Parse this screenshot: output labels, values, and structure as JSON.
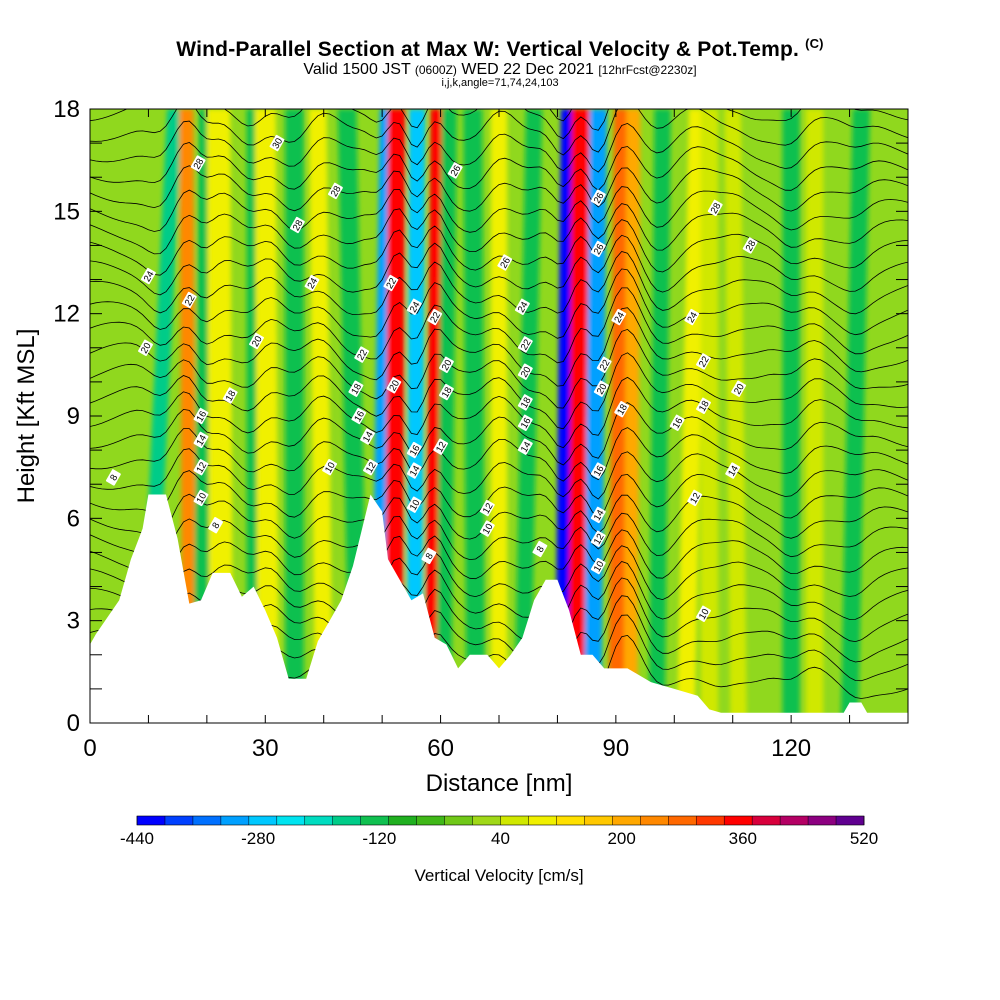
{
  "chart_data": {
    "type": "heatmap",
    "title": "Wind-Parallel Section at Max W: Vertical Velocity & Pot.Temp.",
    "title_mark": "(C)",
    "subtitle_main": "Valid 1500 JST",
    "subtitle_utc": "(0600Z)",
    "subtitle_date": "WED 22 Dec 2021",
    "subtitle_fcst": "[12hrFcst@2230z]",
    "subtitle2": "i,j,k,angle=71,74,24,103",
    "xlabel": "Distance [nm]",
    "ylabel": "Height [Kft MSL]",
    "xlim": [
      0,
      140
    ],
    "ylim": [
      0,
      18
    ],
    "xticks": [
      0,
      30,
      60,
      90,
      120
    ],
    "yticks": [
      0,
      3,
      6,
      9,
      12,
      15,
      18
    ],
    "colorbar": {
      "label": "Vertical Velocity [cm/s]",
      "min": -440,
      "max": 520,
      "step": 40,
      "tick_labels": [
        -440,
        -280,
        -120,
        40,
        200,
        360,
        520
      ],
      "colors": [
        "#0000ff",
        "#0040ff",
        "#0070ff",
        "#00a0ff",
        "#00c8ff",
        "#00e4f0",
        "#00dcc0",
        "#00cc88",
        "#10c050",
        "#20b020",
        "#40b818",
        "#70c818",
        "#a0d818",
        "#d0e800",
        "#f0f000",
        "#ffe000",
        "#ffc800",
        "#ffa800",
        "#ff8800",
        "#ff6800",
        "#ff3800",
        "#ff0000",
        "#d8003c",
        "#b40064",
        "#8c0080",
        "#600090"
      ]
    },
    "background_color": "#90d81e",
    "terrain": [
      [
        0,
        2.3
      ],
      [
        1,
        2.6
      ],
      [
        3,
        3.1
      ],
      [
        5,
        3.6
      ],
      [
        7,
        4.8
      ],
      [
        9,
        5.7
      ],
      [
        10,
        6.7
      ],
      [
        13,
        6.7
      ],
      [
        15,
        5.4
      ],
      [
        17,
        3.5
      ],
      [
        19,
        3.6
      ],
      [
        21,
        4.4
      ],
      [
        24,
        4.4
      ],
      [
        26,
        3.7
      ],
      [
        28,
        4.0
      ],
      [
        30,
        3.3
      ],
      [
        32,
        2.5
      ],
      [
        34,
        1.3
      ],
      [
        37,
        1.3
      ],
      [
        39,
        2.4
      ],
      [
        41,
        3.0
      ],
      [
        43,
        3.6
      ],
      [
        45,
        4.6
      ],
      [
        48,
        6.7
      ],
      [
        50,
        6.2
      ],
      [
        51,
        4.8
      ],
      [
        53,
        4.2
      ],
      [
        55,
        3.6
      ],
      [
        57,
        3.8
      ],
      [
        59,
        2.5
      ],
      [
        61,
        2.3
      ],
      [
        63,
        1.6
      ],
      [
        65,
        2.0
      ],
      [
        68,
        2.0
      ],
      [
        70,
        1.6
      ],
      [
        72,
        2.0
      ],
      [
        74,
        2.5
      ],
      [
        76,
        3.6
      ],
      [
        78,
        4.2
      ],
      [
        80,
        4.2
      ],
      [
        82,
        3.3
      ],
      [
        84,
        2.0
      ],
      [
        86,
        2.0
      ],
      [
        88,
        1.6
      ],
      [
        92,
        1.6
      ],
      [
        96,
        1.2
      ],
      [
        100,
        1.0
      ],
      [
        104,
        0.8
      ],
      [
        106,
        0.4
      ],
      [
        108,
        0.3
      ],
      [
        124,
        0.3
      ],
      [
        129,
        0.3
      ],
      [
        130,
        0.6
      ],
      [
        132,
        0.6
      ],
      [
        133,
        0.3
      ],
      [
        140,
        0.3
      ]
    ],
    "velocity_bands": [
      {
        "x": 9.5,
        "x_top": 14.5,
        "w": 1.3,
        "value": -160
      },
      {
        "x": 17,
        "x_top": 16.5,
        "w": 1.2,
        "value": 280
      },
      {
        "x": 19,
        "x_top": 20,
        "w": 1.4,
        "value": -120
      },
      {
        "x": 22.5,
        "x_top": 22,
        "w": 2.0,
        "value": 120
      },
      {
        "x": 28,
        "x_top": 28,
        "w": 1.2,
        "value": -120
      },
      {
        "x": 30.5,
        "x_top": 30,
        "w": 1.8,
        "value": 120
      },
      {
        "x": 35,
        "x_top": 35,
        "w": 1.6,
        "value": -120
      },
      {
        "x": 40,
        "x_top": 39,
        "w": 1.5,
        "value": 120
      },
      {
        "x": 46,
        "x_top": 44,
        "w": 1.6,
        "value": -120
      },
      {
        "x": 49.5,
        "x_top": 51,
        "w": 1.4,
        "value": -320
      },
      {
        "x": 52,
        "x_top": 52.5,
        "w": 1.5,
        "value": 400
      },
      {
        "x": 55.5,
        "x_top": 56,
        "w": 1.4,
        "value": -280
      },
      {
        "x": 58.5,
        "x_top": 59.5,
        "w": 1.2,
        "value": 400
      },
      {
        "x": 60.5,
        "x_top": 61.5,
        "w": 1.3,
        "value": -120
      },
      {
        "x": 66,
        "x_top": 65.5,
        "w": 1.6,
        "value": -120
      },
      {
        "x": 70,
        "x_top": 70,
        "w": 1.4,
        "value": 120
      },
      {
        "x": 74,
        "x_top": 76,
        "w": 1.4,
        "value": -120
      },
      {
        "x": 81,
        "x_top": 82,
        "w": 1.4,
        "value": -440
      },
      {
        "x": 83.5,
        "x_top": 84,
        "w": 1.6,
        "value": 400
      },
      {
        "x": 86,
        "x_top": 87,
        "w": 1.5,
        "value": -320
      },
      {
        "x": 90,
        "x_top": 91,
        "w": 1.3,
        "value": 320
      },
      {
        "x": 92.5,
        "x_top": 93,
        "w": 1.2,
        "value": 240
      },
      {
        "x": 97,
        "x_top": 98,
        "w": 1.4,
        "value": -120
      },
      {
        "x": 102,
        "x_top": 104,
        "w": 1.5,
        "value": 120
      },
      {
        "x": 106,
        "x_top": 106,
        "w": 1.5,
        "value": 80
      },
      {
        "x": 111,
        "x_top": 110,
        "w": 1.4,
        "value": 80
      },
      {
        "x": 120,
        "x_top": 120,
        "w": 1.5,
        "value": -120
      },
      {
        "x": 124,
        "x_top": 124,
        "w": 1.5,
        "value": 80
      },
      {
        "x": 130,
        "x_top": 132,
        "w": 1.5,
        "value": -120
      }
    ],
    "contour_labels": [
      {
        "t": "30",
        "x": 32,
        "y": 17.0
      },
      {
        "t": "28",
        "x": 18.5,
        "y": 16.4
      },
      {
        "t": "28",
        "x": 42,
        "y": 15.6
      },
      {
        "t": "26",
        "x": 62.5,
        "y": 16.2
      },
      {
        "t": "28",
        "x": 35.5,
        "y": 14.6
      },
      {
        "t": "26",
        "x": 87,
        "y": 15.4
      },
      {
        "t": "28",
        "x": 107,
        "y": 15.1
      },
      {
        "t": "28",
        "x": 113,
        "y": 14.0
      },
      {
        "t": "26",
        "x": 71,
        "y": 13.5
      },
      {
        "t": "26",
        "x": 87,
        "y": 13.9
      },
      {
        "t": "24",
        "x": 10,
        "y": 13.1
      },
      {
        "t": "22",
        "x": 17,
        "y": 12.4
      },
      {
        "t": "24",
        "x": 38,
        "y": 12.9
      },
      {
        "t": "22",
        "x": 51.5,
        "y": 12.9
      },
      {
        "t": "24",
        "x": 55.5,
        "y": 12.2
      },
      {
        "t": "22",
        "x": 59,
        "y": 11.9
      },
      {
        "t": "24",
        "x": 74,
        "y": 12.2
      },
      {
        "t": "24",
        "x": 90.5,
        "y": 11.9
      },
      {
        "t": "24",
        "x": 103,
        "y": 11.9
      },
      {
        "t": "20",
        "x": 9.5,
        "y": 11.0
      },
      {
        "t": "20",
        "x": 28.5,
        "y": 11.2
      },
      {
        "t": "22",
        "x": 46.5,
        "y": 10.8
      },
      {
        "t": "22",
        "x": 74.5,
        "y": 11.1
      },
      {
        "t": "22",
        "x": 88,
        "y": 10.5
      },
      {
        "t": "22",
        "x": 105,
        "y": 10.6
      },
      {
        "t": "20",
        "x": 61,
        "y": 10.5
      },
      {
        "t": "20",
        "x": 74.5,
        "y": 10.3
      },
      {
        "t": "18",
        "x": 24,
        "y": 9.6
      },
      {
        "t": "18",
        "x": 45.5,
        "y": 9.8
      },
      {
        "t": "20",
        "x": 52,
        "y": 9.9
      },
      {
        "t": "18",
        "x": 61,
        "y": 9.7
      },
      {
        "t": "20",
        "x": 87.5,
        "y": 9.8
      },
      {
        "t": "20",
        "x": 111,
        "y": 9.8
      },
      {
        "t": "16",
        "x": 46,
        "y": 9.0
      },
      {
        "t": "18",
        "x": 74.5,
        "y": 9.4
      },
      {
        "t": "18",
        "x": 91,
        "y": 9.2
      },
      {
        "t": "18",
        "x": 105,
        "y": 9.3
      },
      {
        "t": "16",
        "x": 19,
        "y": 9.0
      },
      {
        "t": "16",
        "x": 74.5,
        "y": 8.8
      },
      {
        "t": "16",
        "x": 100.5,
        "y": 8.8
      },
      {
        "t": "14",
        "x": 19,
        "y": 8.3
      },
      {
        "t": "14",
        "x": 47.5,
        "y": 8.4
      },
      {
        "t": "16",
        "x": 55.5,
        "y": 8.0
      },
      {
        "t": "12",
        "x": 60,
        "y": 8.1
      },
      {
        "t": "14",
        "x": 74.5,
        "y": 8.1
      },
      {
        "t": "12",
        "x": 19,
        "y": 7.5
      },
      {
        "t": "12",
        "x": 48,
        "y": 7.5
      },
      {
        "t": "14",
        "x": 55.5,
        "y": 7.4
      },
      {
        "t": "10",
        "x": 41,
        "y": 7.5
      },
      {
        "t": "16",
        "x": 87,
        "y": 7.4
      },
      {
        "t": "14",
        "x": 110,
        "y": 7.4
      },
      {
        "t": "8",
        "x": 4,
        "y": 7.2
      },
      {
        "t": "10",
        "x": 19,
        "y": 6.6
      },
      {
        "t": "10",
        "x": 55.5,
        "y": 6.4
      },
      {
        "t": "12",
        "x": 68,
        "y": 6.3
      },
      {
        "t": "12",
        "x": 103.5,
        "y": 6.6
      },
      {
        "t": "14",
        "x": 87,
        "y": 6.1
      },
      {
        "t": "8",
        "x": 21.5,
        "y": 5.8
      },
      {
        "t": "10",
        "x": 68,
        "y": 5.7
      },
      {
        "t": "12",
        "x": 87,
        "y": 5.4
      },
      {
        "t": "8",
        "x": 58,
        "y": 4.9
      },
      {
        "t": "8",
        "x": 77,
        "y": 5.1
      },
      {
        "t": "10",
        "x": 87,
        "y": 4.6
      },
      {
        "t": "10",
        "x": 105,
        "y": 3.2
      }
    ]
  }
}
